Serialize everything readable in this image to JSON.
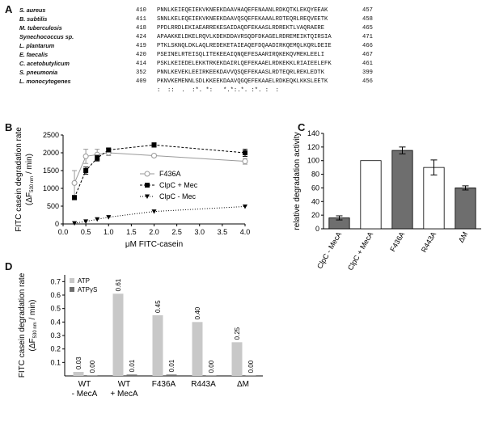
{
  "panel_labels": {
    "a": "A",
    "b": "B",
    "c": "C",
    "d": "D"
  },
  "alignment": {
    "rows": [
      {
        "species": "S. aureus",
        "start": "410",
        "seq": "PNNLKEIEQEIEKVKNEEKDAAVHAQEFENAANLRDKQTKLEKQYEEAK",
        "end": "457"
      },
      {
        "species": "B. subtilis",
        "start": "411",
        "seq": "SNNLKELEQEIEKVKNEEKDAAVQSQEFEKAAALRDTEQRLREQVEETK",
        "end": "458"
      },
      {
        "species": "M. tuberculosis",
        "start": "418",
        "seq": "PPDLRRDLEKIAEARREKESAIDAQDFEKAASLRDREKTLVAQRAERE",
        "end": "465"
      },
      {
        "species": "Synechococcus sp.",
        "start": "424",
        "seq": "APAAKKELDKELRQVLKDEKDDAVRSQDFDKAGELRDREMEIKTQIRSIA",
        "end": "471"
      },
      {
        "species": "L. plantarum",
        "start": "419",
        "seq": "PTKLSKNQLDKLAQLREDEKETAIEAQEFDQAADIRKQEMQLKQRLDEIE",
        "end": "466"
      },
      {
        "species": "E. faecalis",
        "start": "420",
        "seq": "PSEINELRTEISQLITEKEEAIQNQEFESAARIRQKEKQVMEKLEELI",
        "end": "467"
      },
      {
        "species": "C. acetobutylicum",
        "start": "414",
        "seq": "PSKLKEIEDELEKKTRKEKDAIRLQEFEKAAELRDKEKKLRIAIEELEFK",
        "end": "461"
      },
      {
        "species": "S. pneumonia",
        "start": "352",
        "seq": "PNNLKEVEKLEEIRKEEKDAVVQSQEFEKAASLRDTEQRLREKLEDTK",
        "end": "399"
      },
      {
        "species": "L. monocytogenes",
        "start": "409",
        "seq": "PKNVKEMENNLSDLKKEEKDAAVQGQEFEKAAELRDKEQKLKKSLEETK",
        "end": "456"
      }
    ],
    "consensus": ":  ::  .  :*. *:   *.*:.*. :*. :  :"
  },
  "colors": {
    "black": "#111111",
    "gray_line": "#999999",
    "gray_bar": "#c8c8c8",
    "dark_bar": "#6e6e6e"
  },
  "chart_data": [
    {
      "id": "B",
      "type": "line",
      "xlabel": "μM FITC-casein",
      "ylabel_line1": "FITC casein degradation rate",
      "ylabel_line2_pre": "(ΔF",
      "ylabel_line2_sub": "530 nm",
      "ylabel_line2_post": " / min)",
      "xlim": [
        0,
        4.0
      ],
      "ylim": [
        0,
        2500
      ],
      "xticks": [
        "0.0",
        "0.5",
        "1.0",
        "1.5",
        "2.0",
        "2.5",
        "3.0",
        "3.5",
        "4.0"
      ],
      "yticks": [
        "0",
        "500",
        "1000",
        "1500",
        "2000",
        "2500"
      ],
      "legend_position": "center-right",
      "series": [
        {
          "name": "F436A",
          "style": "solid-gray-open-circle",
          "x": [
            0.25,
            0.5,
            0.75,
            1.0,
            2.0,
            4.0
          ],
          "y": [
            1150,
            1900,
            1950,
            2000,
            1920,
            1760
          ],
          "err": [
            350,
            200,
            150,
            80,
            40,
            80
          ]
        },
        {
          "name": "ClpC + Mec",
          "style": "dashed-black-square",
          "x": [
            0.25,
            0.5,
            0.75,
            1.0,
            2.0,
            4.0
          ],
          "y": [
            740,
            1500,
            1850,
            2080,
            2220,
            2000
          ],
          "err": [
            60,
            100,
            80,
            50,
            60,
            100
          ]
        },
        {
          "name": "ClpC - Mec",
          "style": "dotted-black-triangle",
          "x": [
            0.25,
            0.5,
            0.75,
            1.0,
            2.0,
            4.0
          ],
          "y": [
            20,
            70,
            130,
            190,
            350,
            490
          ],
          "err": [
            0,
            0,
            0,
            0,
            0,
            0
          ]
        }
      ]
    },
    {
      "id": "C",
      "type": "bar",
      "ylabel": "relative degradation activity",
      "ylim": [
        0,
        140
      ],
      "yticks": [
        "0",
        "20",
        "40",
        "60",
        "80",
        "100",
        "120",
        "140"
      ],
      "categories": [
        "ClpC - MecA",
        "ClpC + MecA",
        "F436A",
        "R443A",
        "ΔM"
      ],
      "values": [
        16,
        100,
        115,
        90,
        60
      ],
      "err": [
        3,
        0,
        5,
        11,
        3
      ],
      "fills": [
        "dark",
        "white",
        "dark",
        "white",
        "dark"
      ]
    },
    {
      "id": "D",
      "type": "bar",
      "ylabel_line1": "FITC casein degradation rate",
      "ylabel_line2_pre": "(ΔF",
      "ylabel_line2_sub": "530 nm",
      "ylabel_line2_post": " / min)",
      "yticks": [
        "0.1",
        "0.2",
        "0.3",
        "0.4",
        "0.5",
        "0.6",
        "0.7"
      ],
      "ylim": [
        0,
        0.75
      ],
      "legend_position": "top-left",
      "categories_line1": [
        "WT",
        "WT",
        "F436A",
        "R443A",
        "ΔM"
      ],
      "categories_line2": [
        "- MecA",
        "+ MecA",
        "",
        "",
        ""
      ],
      "series": [
        {
          "name": "ATP",
          "values": [
            0.03,
            0.61,
            0.45,
            0.4,
            0.25
          ],
          "labels": [
            "0.03",
            "0.61",
            "0.45",
            "0.40",
            "0.25"
          ]
        },
        {
          "name": "ATPγS",
          "values": [
            0.0,
            0.01,
            0.01,
            0.0,
            0.0
          ],
          "labels": [
            "0.00",
            "0.01",
            "0.01",
            "0.00",
            "0.00"
          ]
        }
      ]
    }
  ]
}
